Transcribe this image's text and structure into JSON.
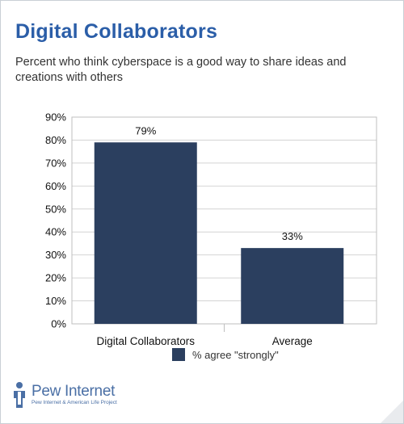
{
  "header": {
    "title": "Digital Collaborators",
    "subtitle": "Percent who think cyberspace is a good way to share ideas and creations with others"
  },
  "colors": {
    "title": "#2b5ea8",
    "bar": "#2b3f5f",
    "logo": "#4a6fa5"
  },
  "chart_data": {
    "type": "bar",
    "categories": [
      "Digital Collaborators",
      "Average"
    ],
    "series": [
      {
        "name": "% agree \"strongly\"",
        "values": [
          79,
          33
        ]
      }
    ],
    "data_labels": [
      "79%",
      "33%"
    ],
    "yticks": [
      "0%",
      "10%",
      "20%",
      "30%",
      "40%",
      "50%",
      "60%",
      "70%",
      "80%",
      "90%"
    ],
    "ylim": [
      0,
      90
    ],
    "grid": true,
    "legend": "bottom"
  },
  "logo": {
    "name": "Pew Internet",
    "tagline": "Pew Internet & American Life Project"
  }
}
